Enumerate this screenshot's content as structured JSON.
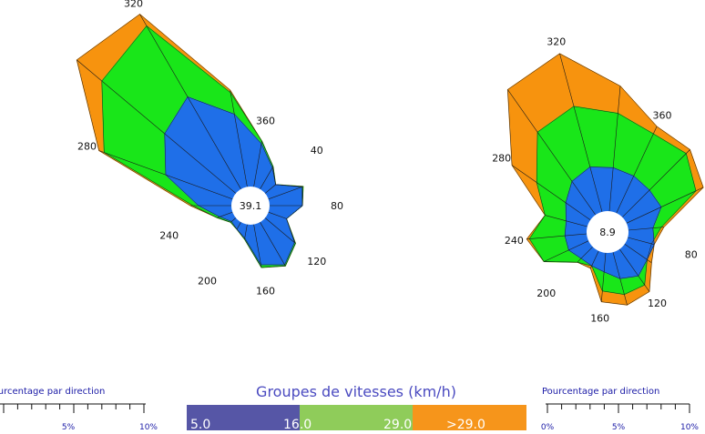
{
  "colors": {
    "g1": "#1f6fe8",
    "g2": "#19e619",
    "g3": "#f7930e",
    "legend1": "#5656a6",
    "legend2": "#8fcc5a",
    "legend3": "#f6951b",
    "scale_text": "#1a1aa6",
    "legend_title": "#4a4ac0"
  },
  "chart_data": [
    {
      "type": "radar",
      "calm": "39.1",
      "directions": [
        0,
        20,
        40,
        60,
        80,
        100,
        120,
        140,
        160,
        180,
        200,
        220,
        240,
        260,
        280,
        300,
        320,
        340
      ],
      "direction_labels": [
        {
          "dir": 360,
          "text": "360"
        },
        {
          "dir": 40,
          "text": "40"
        },
        {
          "dir": 80,
          "text": "80"
        },
        {
          "dir": 120,
          "text": "120"
        },
        {
          "dir": 160,
          "text": "160"
        },
        {
          "dir": 200,
          "text": "200"
        },
        {
          "dir": 240,
          "text": "240"
        },
        {
          "dir": 280,
          "text": "280"
        },
        {
          "dir": 320,
          "text": "320"
        }
      ],
      "series": [
        {
          "group": "5.0-16.0",
          "values": [
            1.6,
            0.9,
            0.5,
            1.3,
            1.2,
            0.7,
            1.4,
            1.8,
            1.5,
            0.5,
            0.3,
            0.2,
            0.5,
            1.2,
            2.6,
            3.4,
            3.9,
            2.7
          ]
        },
        {
          "group": "16.0-29.0",
          "values": [
            1.7,
            0.95,
            0.5,
            1.35,
            1.2,
            0.7,
            1.45,
            1.85,
            1.6,
            0.55,
            0.3,
            0.25,
            0.6,
            1.4,
            5.0,
            6.4,
            6.9,
            3.5
          ]
        },
        {
          "group": ">29.0",
          "values": [
            1.7,
            0.95,
            0.5,
            1.35,
            1.2,
            0.7,
            1.45,
            1.85,
            1.6,
            0.55,
            0.3,
            0.25,
            0.6,
            1.5,
            5.2,
            7.6,
            7.4,
            3.6
          ]
        }
      ],
      "scale": {
        "title": "Pourcentage par direction",
        "ticks": [
          "5%",
          "10%"
        ]
      }
    },
    {
      "type": "radar",
      "calm": "8.9",
      "directions": [
        0,
        20,
        40,
        60,
        80,
        100,
        120,
        140,
        160,
        180,
        200,
        220,
        240,
        260,
        280,
        300,
        320,
        340
      ],
      "direction_labels": [
        {
          "dir": 360,
          "text": "360"
        },
        {
          "dir": 40,
          "text": "40"
        },
        {
          "dir": 80,
          "text": "80"
        },
        {
          "dir": 120,
          "text": "120"
        },
        {
          "dir": 160,
          "text": "160"
        },
        {
          "dir": 200,
          "text": "200"
        },
        {
          "dir": 240,
          "text": "240"
        },
        {
          "dir": 280,
          "text": "280"
        },
        {
          "dir": 320,
          "text": "320"
        }
      ],
      "series": [
        {
          "group": "5.0-16.0",
          "values": [
            1.5,
            1.4,
            1.4,
            0.9,
            1.0,
            1.0,
            1.2,
            1.0,
            0.7,
            0.6,
            0.6,
            0.8,
            0.8,
            0.8,
            1.1,
            1.5,
            1.7,
            1.6
          ]
        },
        {
          "group": "16.0-29.0",
          "values": [
            3.2,
            3.3,
            2.8,
            1.2,
            0.9,
            1.0,
            1.6,
            1.6,
            1.4,
            0.6,
            0.8,
            1.8,
            2.1,
            1.6,
            2.4,
            3.7,
            4.0,
            3.6
          ]
        },
        {
          "group": ">29.0",
          "values": [
            3.5,
            3.5,
            3.1,
            1.3,
            1.0,
            1.2,
            1.9,
            2.0,
            1.8,
            0.7,
            0.8,
            1.8,
            2.2,
            1.6,
            3.5,
            5.6,
            6.0,
            4.6
          ]
        }
      ],
      "scale": {
        "title": "Pourcentage par direction",
        "ticks": [
          "0%",
          "5%",
          "10%"
        ]
      }
    }
  ],
  "legend": {
    "title": "Groupes de vitesses (km/h)",
    "labels": [
      "5.0",
      "16.0",
      "29.0",
      ">29.0"
    ]
  }
}
